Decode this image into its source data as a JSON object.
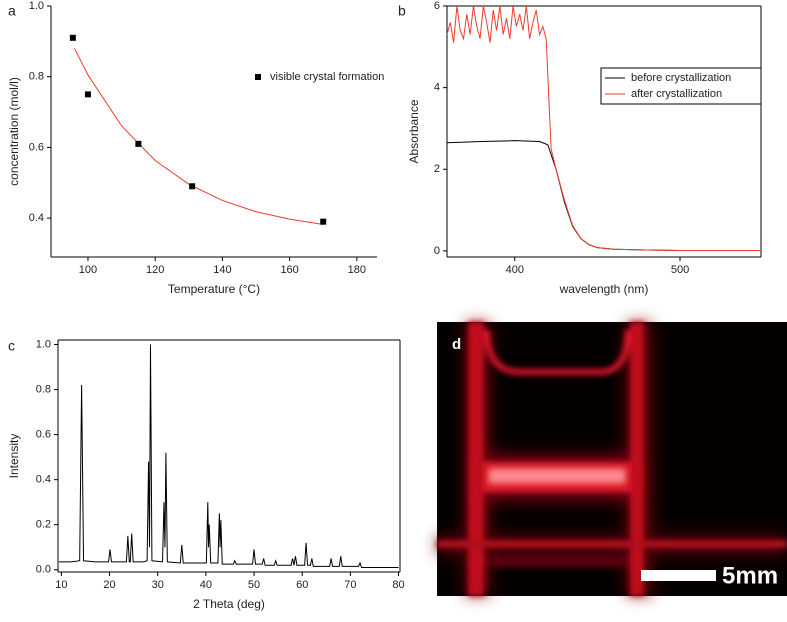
{
  "chart_data": [
    {
      "type": "scatter",
      "panel_label": "a",
      "xlabel": "Temperature (°C)",
      "ylabel": "concentration (mol/l)",
      "xlim": [
        89,
        186
      ],
      "xticks": [
        100,
        120,
        140,
        160,
        180
      ],
      "ylim": [
        0.29,
        1.0
      ],
      "yticks": [
        0.4,
        0.6,
        0.8,
        {
          "value": 1,
          "label": "1.0"
        }
      ],
      "frame": false,
      "legend": "upper right",
      "series": [
        {
          "name": "visible crystal formation",
          "mode": "markers",
          "color": "#000000",
          "x": [
            95.5,
            100,
            115,
            131,
            170
          ],
          "values": [
            0.91,
            0.75,
            0.61,
            0.49,
            0.39
          ]
        },
        {
          "mode": "line",
          "color": "#ee3b2f",
          "x": [
            96,
            100,
            110,
            120,
            130,
            140,
            150,
            160,
            170
          ],
          "values": [
            0.88,
            0.805,
            0.661,
            0.563,
            0.496,
            0.45,
            0.418,
            0.397,
            0.382
          ]
        }
      ]
    },
    {
      "type": "line",
      "panel_label": "b",
      "xlabel": "wavelength (nm)",
      "ylabel": "Absorbance",
      "xlim": [
        359,
        549
      ],
      "xticks": [
        400,
        500
      ],
      "ylim": [
        -0.15,
        6
      ],
      "yticks": [
        0,
        2,
        4,
        6
      ],
      "frame": true,
      "legend": "upper right",
      "series": [
        {
          "name": "before crystallization",
          "color": "#000000",
          "x": [
            359,
            380,
            400,
            415,
            420,
            425,
            430,
            435,
            440,
            445,
            450,
            460,
            480,
            500,
            549
          ],
          "values": [
            2.65,
            2.68,
            2.7,
            2.68,
            2.6,
            2.0,
            1.2,
            0.6,
            0.3,
            0.15,
            0.08,
            0.04,
            0.02,
            0.01,
            0.01
          ]
        },
        {
          "name": "after crystallization",
          "color": "#ee3b2f",
          "x": [
            359,
            361,
            363,
            365,
            367,
            369,
            371,
            373,
            375,
            377,
            379,
            381,
            383,
            385,
            387,
            389,
            391,
            393,
            395,
            397,
            399,
            401,
            403,
            405,
            407,
            409,
            411,
            413,
            415,
            417,
            419,
            422,
            425,
            430,
            435,
            440,
            445,
            450,
            460,
            480,
            500,
            549
          ],
          "values": [
            5.3,
            5.6,
            5.1,
            6,
            5.4,
            5.2,
            5.8,
            5.3,
            6,
            5.5,
            5.2,
            6,
            5.6,
            5.1,
            5.9,
            5.4,
            6,
            5.3,
            5.7,
            5.2,
            6,
            5.5,
            5.8,
            5.4,
            6,
            5.2,
            5.6,
            5.9,
            5.3,
            5.5,
            5.2,
            2.5,
            2.0,
            1.25,
            0.62,
            0.3,
            0.15,
            0.08,
            0.04,
            0.02,
            0.01,
            0.01
          ]
        }
      ]
    },
    {
      "type": "line",
      "panel_label": "c",
      "xlabel": "2 Theta (deg)",
      "ylabel": "Intensity",
      "xlim": [
        9.3,
        80.3
      ],
      "xticks": [
        10,
        20,
        30,
        40,
        50,
        60,
        70,
        80
      ],
      "ylim": [
        -0.01,
        1.02
      ],
      "yticks": [
        {
          "value": 0,
          "label": "0.0"
        },
        0.2,
        0.4,
        0.6,
        0.8,
        {
          "value": 1,
          "label": "1.0"
        }
      ],
      "frame": true,
      "series": [
        {
          "color": "#000000",
          "x": [
            9.5,
            12,
            13.8,
            14.2,
            14.6,
            17,
            19.8,
            20.1,
            20.4,
            23.5,
            23.8,
            24.1,
            24.3,
            24.6,
            24.9,
            27,
            27.8,
            28.1,
            28.3,
            28.5,
            28.8,
            31,
            31.3,
            31.5,
            31.7,
            32,
            34.7,
            35,
            35.3,
            38,
            40.1,
            40.4,
            40.55,
            40.7,
            41,
            42.5,
            42.8,
            42.95,
            43.1,
            43.4,
            45.7,
            46,
            46.3,
            49.7,
            50,
            50.3,
            51.7,
            52,
            52.3,
            54.2,
            54.5,
            54.8,
            57.7,
            58,
            58.3,
            58.6,
            58.9,
            60.5,
            60.8,
            61.1,
            61.7,
            62,
            62.3,
            65.7,
            66,
            66.3,
            67.7,
            68,
            68.3,
            71.7,
            72,
            72.3,
            76,
            80
          ],
          "values": [
            0.035,
            0.035,
            0.04,
            0.82,
            0.04,
            0.035,
            0.035,
            0.09,
            0.035,
            0.035,
            0.15,
            0.035,
            0.035,
            0.16,
            0.035,
            0.035,
            0.04,
            0.48,
            0.1,
            1.0,
            0.04,
            0.035,
            0.3,
            0.1,
            0.52,
            0.035,
            0.03,
            0.11,
            0.03,
            0.03,
            0.03,
            0.3,
            0.1,
            0.2,
            0.03,
            0.03,
            0.25,
            0.1,
            0.22,
            0.025,
            0.025,
            0.04,
            0.025,
            0.025,
            0.09,
            0.025,
            0.025,
            0.05,
            0.02,
            0.02,
            0.04,
            0.02,
            0.02,
            0.05,
            0.02,
            0.06,
            0.02,
            0.02,
            0.12,
            0.02,
            0.02,
            0.05,
            0.015,
            0.015,
            0.05,
            0.015,
            0.015,
            0.06,
            0.015,
            0.015,
            0.03,
            0.01,
            0.01,
            0.01
          ]
        }
      ]
    }
  ],
  "photo": {
    "panel_label": "d",
    "scale_bar_label": "5mm"
  }
}
